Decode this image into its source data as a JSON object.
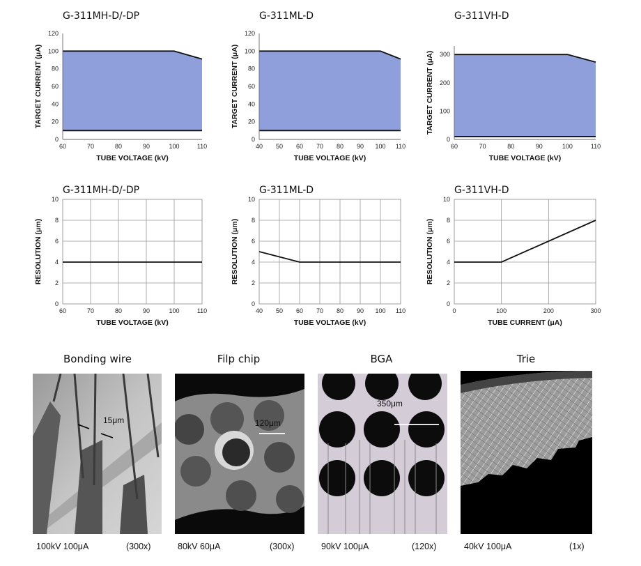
{
  "colors": {
    "fill": "#8f9fdc",
    "line": "#111111",
    "grid": "#9a9a9a"
  },
  "chart_data": [
    {
      "type": "area",
      "title": "G-311MH-D/-DP",
      "xlabel": "TUBE VOLTAGE (kV)",
      "ylabel": "TARGET CURRENT (μA)",
      "xlim": [
        60,
        110
      ],
      "ylim": [
        0,
        120
      ],
      "xticks": [
        60,
        70,
        80,
        90,
        100,
        110
      ],
      "yticks": [
        0,
        20,
        40,
        60,
        80,
        100,
        120
      ],
      "grid": false,
      "upper": {
        "x": [
          60,
          100,
          110
        ],
        "y": [
          100,
          100,
          91
        ]
      },
      "lower": {
        "x": [
          60,
          110
        ],
        "y": [
          10,
          10
        ]
      }
    },
    {
      "type": "area",
      "title": "G-311ML-D",
      "xlabel": "TUBE VOLTAGE (kV)",
      "ylabel": "TARGET CURRENT (μA)",
      "xlim": [
        40,
        110
      ],
      "ylim": [
        0,
        120
      ],
      "xticks": [
        40,
        50,
        60,
        70,
        80,
        90,
        100,
        110
      ],
      "yticks": [
        0,
        20,
        40,
        60,
        80,
        100,
        120
      ],
      "grid": false,
      "upper": {
        "x": [
          40,
          100,
          110
        ],
        "y": [
          100,
          100,
          91
        ]
      },
      "lower": {
        "x": [
          40,
          110
        ],
        "y": [
          10,
          10
        ]
      }
    },
    {
      "type": "area",
      "title": "G-311VH-D",
      "xlabel": "TUBE VOLTAGE (kV)",
      "ylabel": "TARGET CURRENT (μA)",
      "xlim": [
        60,
        110
      ],
      "ylim": [
        0,
        330
      ],
      "xticks": [
        60,
        70,
        80,
        90,
        100,
        110
      ],
      "yticks": [
        0,
        100,
        200,
        300
      ],
      "grid": false,
      "upper": {
        "x": [
          60,
          100,
          110
        ],
        "y": [
          300,
          300,
          273
        ]
      },
      "lower": {
        "x": [
          60,
          110
        ],
        "y": [
          10,
          10
        ]
      }
    },
    {
      "type": "line",
      "title": "G-311MH-D/-DP",
      "xlabel": "TUBE VOLTAGE (kV)",
      "ylabel": "RESOLUTION (μm)",
      "xlim": [
        60,
        110
      ],
      "ylim": [
        0,
        10
      ],
      "xticks": [
        60,
        70,
        80,
        90,
        100,
        110
      ],
      "yticks": [
        0,
        2,
        4,
        6,
        8,
        10
      ],
      "grid": true,
      "line": {
        "x": [
          60,
          110
        ],
        "y": [
          4,
          4
        ]
      }
    },
    {
      "type": "line",
      "title": "G-311ML-D",
      "xlabel": "TUBE VOLTAGE (kV)",
      "ylabel": "RESOLUTION (μm)",
      "xlim": [
        40,
        110
      ],
      "ylim": [
        0,
        10
      ],
      "xticks": [
        40,
        50,
        60,
        70,
        80,
        90,
        100,
        110
      ],
      "yticks": [
        0,
        2,
        4,
        6,
        8,
        10
      ],
      "grid": true,
      "line": {
        "x": [
          40,
          60,
          110
        ],
        "y": [
          5,
          4,
          4
        ]
      }
    },
    {
      "type": "line",
      "title": "G-311VH-D",
      "xlabel": "TUBE CURRENT (μA)",
      "ylabel": "RESOLUTION (μm)",
      "xlim": [
        0,
        300
      ],
      "ylim": [
        0,
        10
      ],
      "xticks": [
        0,
        100,
        200,
        300
      ],
      "yticks": [
        0,
        2,
        4,
        6,
        8,
        10
      ],
      "grid": true,
      "line": {
        "x": [
          0,
          100,
          300
        ],
        "y": [
          4,
          4,
          8
        ]
      }
    }
  ],
  "photos": [
    {
      "title": "Bonding wire",
      "conditions": "100kV 100μA",
      "magnification": "(300x)",
      "annotation": "15μm"
    },
    {
      "title": "Filp chip",
      "conditions": "80kV 60μA",
      "magnification": "(300x)",
      "annotation": "120μm"
    },
    {
      "title": "BGA",
      "conditions": "90kV 100μA",
      "magnification": "(120x)",
      "annotation": "350μm"
    },
    {
      "title": "Trie",
      "conditions": "40kV 100μA",
      "magnification": "(1x)"
    }
  ]
}
